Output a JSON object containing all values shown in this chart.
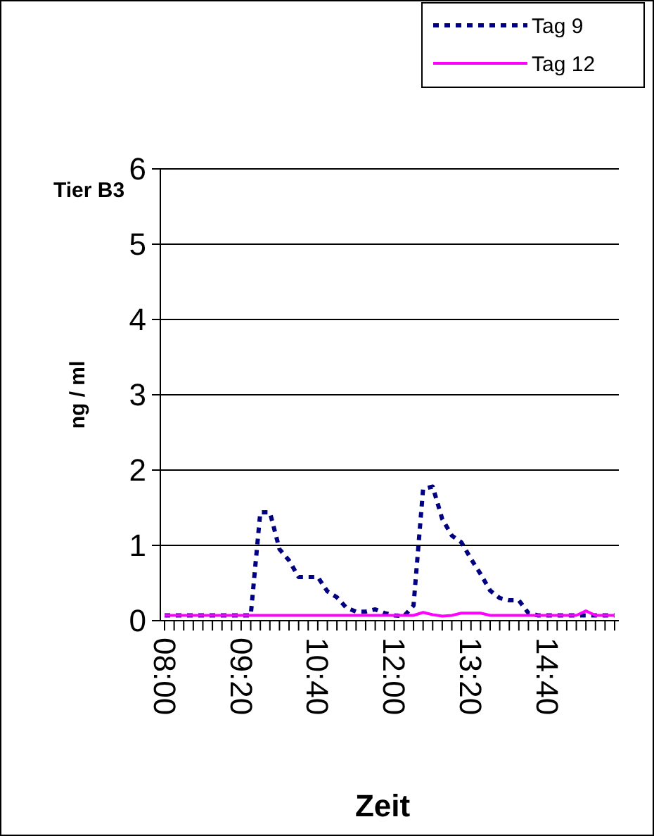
{
  "chart_data": {
    "type": "line",
    "title": "Tier B3",
    "xlabel": "Zeit",
    "ylabel": "ng / ml",
    "categories": [
      "08:00",
      null,
      null,
      null,
      null,
      null,
      null,
      null,
      "09:20",
      null,
      null,
      null,
      null,
      null,
      null,
      null,
      "10:40",
      null,
      null,
      null,
      null,
      null,
      null,
      null,
      "12:00",
      null,
      null,
      null,
      null,
      null,
      null,
      null,
      "13:20",
      null,
      null,
      null,
      null,
      null,
      null,
      null,
      "14:40",
      null,
      null,
      null,
      null,
      null,
      null,
      null
    ],
    "series": [
      {
        "name": "Tag 9",
        "color": "#000080",
        "line_style": "dashed",
        "values": [
          0.07,
          0.07,
          0.07,
          0.07,
          0.07,
          0.07,
          0.07,
          0.07,
          0.07,
          0.07,
          1.44,
          1.44,
          0.95,
          0.8,
          0.58,
          0.58,
          0.58,
          0.39,
          0.31,
          0.17,
          0.12,
          0.12,
          0.15,
          0.1,
          0.07,
          0.06,
          0.2,
          1.75,
          1.78,
          1.35,
          1.13,
          1.04,
          0.82,
          0.62,
          0.4,
          0.3,
          0.27,
          0.27,
          0.1,
          0.07,
          0.07,
          0.07,
          0.07,
          0.07,
          0.07,
          0.07,
          0.07,
          0.07
        ]
      },
      {
        "name": "Tag 12",
        "color": "#ff00ff",
        "line_style": "solid",
        "values": [
          0.07,
          0.07,
          0.07,
          0.07,
          0.07,
          0.07,
          0.07,
          0.07,
          0.07,
          0.07,
          0.07,
          0.07,
          0.07,
          0.07,
          0.07,
          0.07,
          0.07,
          0.07,
          0.07,
          0.07,
          0.07,
          0.07,
          0.07,
          0.07,
          0.07,
          0.07,
          0.07,
          0.11,
          0.08,
          0.06,
          0.07,
          0.1,
          0.1,
          0.1,
          0.07,
          0.07,
          0.07,
          0.07,
          0.07,
          0.07,
          0.07,
          0.07,
          0.07,
          0.07,
          0.13,
          0.07,
          0.07,
          0.07
        ]
      }
    ],
    "ylim": [
      0,
      6
    ],
    "yticks": [
      0,
      1,
      2,
      3,
      4,
      5,
      6
    ],
    "grid": "y",
    "legend": "top right",
    "marker": "none"
  }
}
